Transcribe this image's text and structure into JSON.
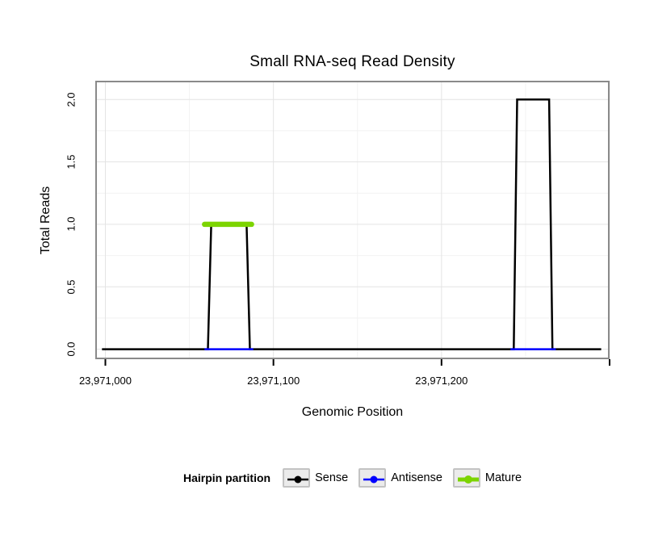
{
  "chart_data": {
    "type": "step",
    "title": "Small RNA-seq Read Density",
    "xlabel": "Genomic Position",
    "ylabel": "Total Reads",
    "x_range": [
      23970994,
      23971300
    ],
    "y_range": [
      -0.08,
      2.15
    ],
    "xlim": [
      23971000,
      23971300
    ],
    "ylim": [
      0,
      2
    ],
    "grid": true,
    "grid_color": "#e4e4e4",
    "grid_minor_color": "#f2f2f2",
    "panel_border_color": "#8a8a8a",
    "panel_background": "#ffffff",
    "x_ticks": [
      {
        "value": 23971000,
        "label": "23,971,000"
      },
      {
        "value": 23971100,
        "label": "23,971,100"
      },
      {
        "value": 23971200,
        "label": "23,971,200"
      },
      {
        "value": 23971300,
        "label": ""
      }
    ],
    "x_minor_ticks": [
      23971050,
      23971150,
      23971250
    ],
    "y_ticks": [
      {
        "value": 0.0,
        "label": "0.0"
      },
      {
        "value": 0.5,
        "label": "0.5"
      },
      {
        "value": 1.0,
        "label": "1.0"
      },
      {
        "value": 1.5,
        "label": "1.5"
      },
      {
        "value": 2.0,
        "label": "2.0"
      }
    ],
    "y_minor_ticks": [
      0.25,
      0.75,
      1.25,
      1.75
    ],
    "series": [
      {
        "name": "Sense",
        "color": "#000000",
        "width": 2.5,
        "linecap": "butt",
        "segments": [
          [
            [
              23970998,
              0
            ],
            [
              23971061,
              0
            ],
            [
              23971063,
              1
            ],
            [
              23971084,
              1
            ],
            [
              23971086,
              0
            ],
            [
              23971243,
              0
            ],
            [
              23971245,
              2
            ],
            [
              23971264,
              2
            ],
            [
              23971266,
              0
            ],
            [
              23971295,
              0
            ]
          ]
        ]
      },
      {
        "name": "Antisense",
        "color": "#0000ff",
        "width": 2.5,
        "linecap": "butt",
        "segments": [
          [
            [
              23971059,
              0
            ],
            [
              23971088,
              0
            ]
          ],
          [
            [
              23971241,
              0
            ],
            [
              23971268,
              0
            ]
          ]
        ]
      },
      {
        "name": "Mature",
        "color": "#7CD400",
        "width": 6.5,
        "linecap": "round",
        "segments": [
          [
            [
              23971059,
              1
            ],
            [
              23971087,
              1
            ]
          ]
        ]
      }
    ]
  },
  "legend": {
    "title": "Hairpin partition",
    "items": [
      {
        "label": "Sense",
        "color": "#000000",
        "key_line_width": 2.5,
        "key_dot_radius": 4.5
      },
      {
        "label": "Antisense",
        "color": "#0000ff",
        "key_line_width": 2.5,
        "key_dot_radius": 4.5
      },
      {
        "label": "Mature",
        "color": "#7CD400",
        "key_line_width": 5,
        "key_dot_radius": 5
      }
    ]
  }
}
